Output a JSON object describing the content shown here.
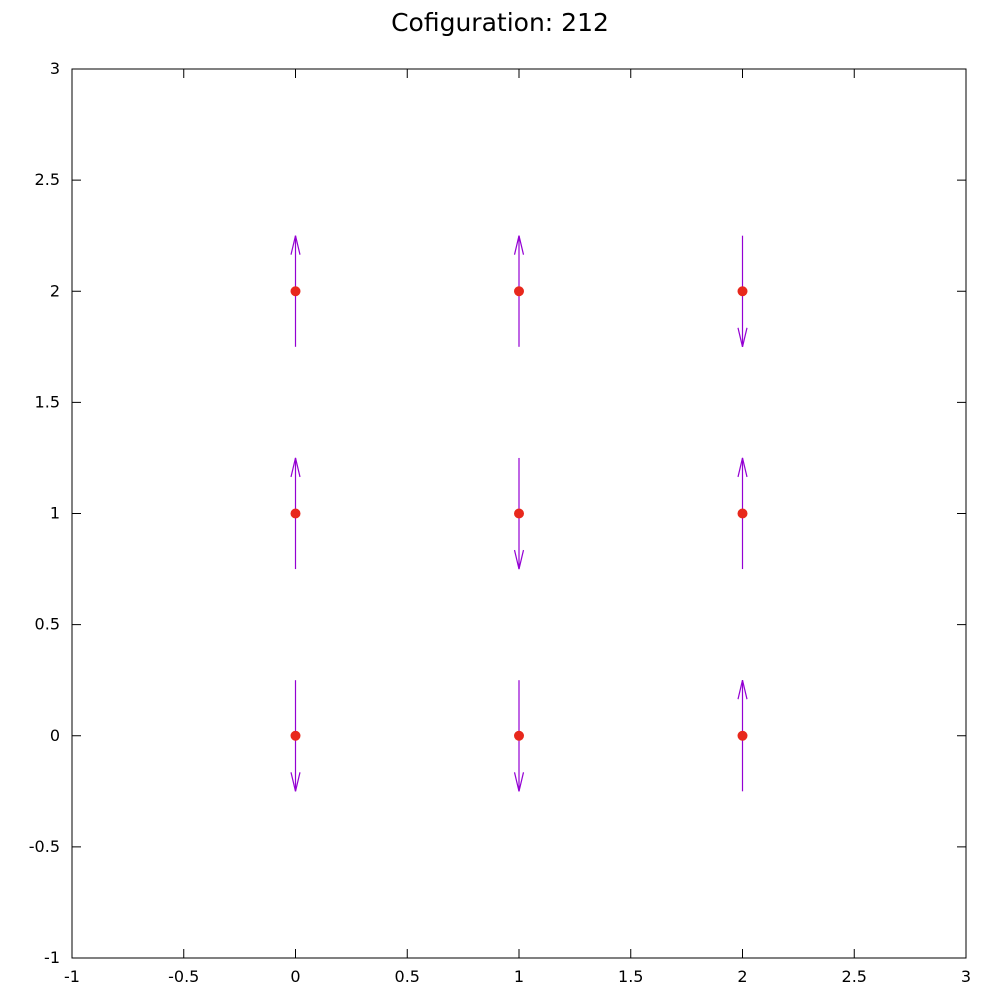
{
  "chart_data": {
    "type": "scatter",
    "title": "Cofiguration: 212",
    "xlabel": "",
    "ylabel": "",
    "xlim": [
      -1,
      3
    ],
    "ylim": [
      -1,
      3
    ],
    "xticks": [
      -1,
      -0.5,
      0,
      0.5,
      1,
      1.5,
      2,
      2.5,
      3
    ],
    "yticks": [
      -1,
      -0.5,
      0,
      0.5,
      1,
      1.5,
      2,
      2.5,
      3
    ],
    "xtick_labels": [
      "-1",
      "-0.5",
      "0",
      "0.5",
      "1",
      "1.5",
      "2",
      "2.5",
      "3"
    ],
    "ytick_labels": [
      "-1",
      "-0.5",
      "0",
      "0.5",
      "1",
      "1.5",
      "2",
      "2.5",
      "3"
    ],
    "grid": false,
    "arrow_half_length": 0.25,
    "points": [
      {
        "x": 0,
        "y": 2,
        "spin": "up"
      },
      {
        "x": 1,
        "y": 2,
        "spin": "up"
      },
      {
        "x": 2,
        "y": 2,
        "spin": "down"
      },
      {
        "x": 0,
        "y": 1,
        "spin": "up"
      },
      {
        "x": 1,
        "y": 1,
        "spin": "down"
      },
      {
        "x": 2,
        "y": 1,
        "spin": "up"
      },
      {
        "x": 0,
        "y": 0,
        "spin": "down"
      },
      {
        "x": 1,
        "y": 0,
        "spin": "down"
      },
      {
        "x": 2,
        "y": 0,
        "spin": "up"
      }
    ],
    "colors": {
      "point": "#e8281c",
      "arrow": "#9400d3",
      "axis": "#000000"
    }
  }
}
